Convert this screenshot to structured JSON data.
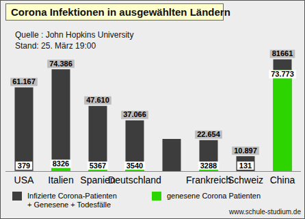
{
  "chart_data": {
    "type": "bar",
    "title": "Corona Infektionen in ausgewählten Ländern",
    "annotations": [
      "Quelle : John Hopkins University",
      "Stand: 25. März 19:00",
      "www.schule-studium.de"
    ],
    "categories": [
      "USA",
      "Italien",
      "Spanien",
      "Deutschland",
      null,
      "Frankreich",
      "Schweiz",
      "China"
    ],
    "series": [
      {
        "name": "Infizierte Corona-Patienten\n+ Genesene + Todesfälle",
        "color": "#3d3d3d",
        "values": [
          61167,
          74386,
          47610,
          37066,
          23500,
          22654,
          10897,
          81661
        ],
        "value_labels": [
          "61.167",
          "74.386",
          "47.610",
          "37.066",
          null,
          "22.654",
          "10.897",
          "81661"
        ]
      },
      {
        "name": "genesene Corona Patienten",
        "color": "#2ed400",
        "values": [
          379,
          8326,
          5367,
          3540,
          null,
          3288,
          131,
          73773
        ],
        "value_labels": [
          "379",
          "8326",
          "5367",
          "3540",
          null,
          "3288",
          "131",
          "73.773"
        ]
      }
    ],
    "ylim": [
      0,
      96000
    ],
    "stacked": false,
    "data_labels": true,
    "tick_labels": "x",
    "grid": false,
    "legend": "bottom"
  }
}
